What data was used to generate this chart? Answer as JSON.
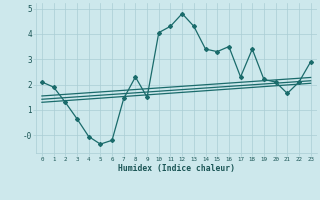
{
  "xlabel": "Humidex (Indice chaleur)",
  "background_color": "#cde8ec",
  "grid_color": "#aacdd4",
  "line_color": "#1a6b6b",
  "xlim": [
    -0.5,
    23.5
  ],
  "ylim": [
    -0.7,
    5.2
  ],
  "xticks": [
    0,
    1,
    2,
    3,
    4,
    5,
    6,
    7,
    8,
    9,
    10,
    11,
    12,
    13,
    14,
    15,
    16,
    17,
    18,
    19,
    20,
    21,
    22,
    23
  ],
  "yticks": [
    0,
    1,
    2,
    3,
    4,
    5
  ],
  "ytick_labels": [
    "-0",
    "1",
    "2",
    "3",
    "4",
    "5"
  ],
  "curve1_x": [
    0,
    1,
    2,
    3,
    4,
    5,
    6,
    7,
    8,
    9,
    10,
    11,
    12,
    13,
    14,
    15,
    16,
    17,
    18,
    19,
    20,
    21,
    22,
    23
  ],
  "curve1_y": [
    2.1,
    1.9,
    1.3,
    0.65,
    -0.05,
    -0.35,
    -0.2,
    1.45,
    2.3,
    1.5,
    4.05,
    4.3,
    4.8,
    4.3,
    3.4,
    3.3,
    3.5,
    2.3,
    3.4,
    2.2,
    2.1,
    1.65,
    2.1,
    2.9
  ],
  "line1_x": [
    0,
    23
  ],
  "line1_y": [
    1.3,
    2.05
  ],
  "line2_x": [
    0,
    23
  ],
  "line2_y": [
    1.42,
    2.15
  ],
  "line3_x": [
    0,
    23
  ],
  "line3_y": [
    1.55,
    2.28
  ]
}
